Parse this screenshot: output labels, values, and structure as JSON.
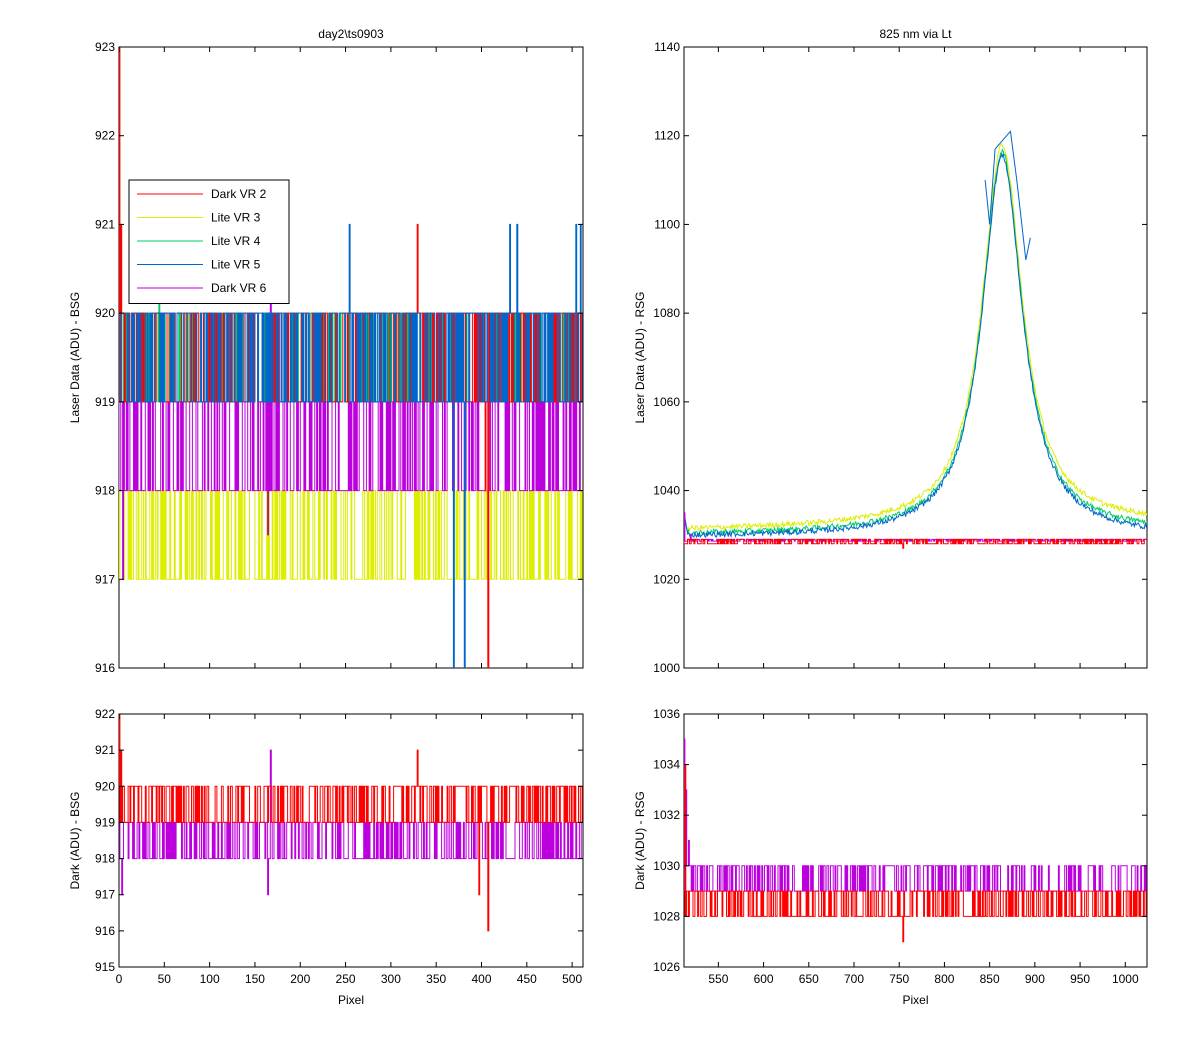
{
  "colors": {
    "dark_vr2": "#ff0000",
    "lite_vr3": "#ddee00",
    "lite_vr4": "#00cc66",
    "lite_vr5": "#0066cc",
    "dark_vr6": "#bb00dd"
  },
  "chart_data": [
    {
      "id": "tl",
      "type": "line",
      "title": "day2\\ts0903",
      "xlabel": "",
      "ylabel": "Laser Data (ADU) - BSG",
      "xlim": [
        0,
        512
      ],
      "ylim": [
        916,
        923
      ],
      "xticks": [
        0,
        50,
        100,
        150,
        200,
        250,
        300,
        350,
        400,
        450,
        500
      ],
      "yticks": [
        916,
        917,
        918,
        919,
        920,
        921,
        922,
        923
      ],
      "show_x_ticklabels": false,
      "grid": false,
      "legend": {
        "placement": "upper-left",
        "entries": [
          {
            "label": "Dark VR 2",
            "color_key": "dark_vr2"
          },
          {
            "label": "Lite VR 3",
            "color_key": "lite_vr3"
          },
          {
            "label": "Lite VR 4",
            "color_key": "lite_vr4"
          },
          {
            "label": "Lite VR 5",
            "color_key": "lite_vr5"
          },
          {
            "label": "Dark VR 6",
            "color_key": "dark_vr6"
          }
        ]
      },
      "series": [
        {
          "name": "Lite VR 3",
          "color_key": "lite_vr3",
          "pattern": "noise",
          "levels": [
            917,
            918
          ],
          "spikes": [
            [
              120,
              917
            ],
            [
              165,
              917
            ]
          ]
        },
        {
          "name": "Lite VR 4",
          "color_key": "lite_vr4",
          "pattern": "noise",
          "levels": [
            919,
            920
          ],
          "spikes": [
            [
              45,
              920.2
            ]
          ]
        },
        {
          "name": "Dark VR 6",
          "color_key": "dark_vr6",
          "pattern": "noise",
          "levels": [
            918,
            919
          ],
          "spikes": [
            [
              5,
              917
            ],
            [
              165,
              917.5
            ],
            [
              168,
              920.2
            ]
          ]
        },
        {
          "name": "Dark VR 2",
          "color_key": "dark_vr2",
          "pattern": "noise",
          "levels": [
            919,
            920
          ],
          "spikes": [
            [
              1,
              923
            ],
            [
              3,
              921
            ],
            [
              330,
              921
            ],
            [
              405,
              918
            ],
            [
              408,
              916
            ]
          ]
        },
        {
          "name": "Lite VR 5",
          "color_key": "lite_vr5",
          "pattern": "noise",
          "levels": [
            919,
            920
          ],
          "spikes": [
            [
              255,
              921
            ],
            [
              370,
              916
            ],
            [
              382,
              916
            ],
            [
              432,
              921
            ],
            [
              440,
              921
            ],
            [
              505,
              921
            ],
            [
              510,
              921
            ]
          ]
        }
      ]
    },
    {
      "id": "bl",
      "type": "line",
      "title": "",
      "xlabel": "Pixel",
      "ylabel": "Dark (ADU) - BSG",
      "xlim": [
        0,
        512
      ],
      "ylim": [
        915,
        922
      ],
      "xticks": [
        0,
        50,
        100,
        150,
        200,
        250,
        300,
        350,
        400,
        450,
        500
      ],
      "yticks": [
        915,
        916,
        917,
        918,
        919,
        920,
        921,
        922
      ],
      "show_x_ticklabels": true,
      "grid": false,
      "series": [
        {
          "name": "Dark VR 6",
          "color_key": "dark_vr6",
          "pattern": "noise",
          "levels": [
            918,
            919
          ],
          "spikes": [
            [
              4,
              917
            ],
            [
              165,
              917
            ],
            [
              168,
              921
            ]
          ]
        },
        {
          "name": "Dark VR 2",
          "color_key": "dark_vr2",
          "pattern": "noise",
          "levels": [
            919,
            920
          ],
          "spikes": [
            [
              1,
              922
            ],
            [
              3,
              921
            ],
            [
              330,
              921
            ],
            [
              398,
              917
            ],
            [
              408,
              916
            ]
          ]
        }
      ]
    },
    {
      "id": "tr",
      "type": "line",
      "title": "825 nm via Lt",
      "xlabel": "",
      "ylabel": "Laser Data (ADU) - RSG",
      "xlim": [
        512,
        1024
      ],
      "ylim": [
        1000,
        1140
      ],
      "xticks": [
        550,
        600,
        650,
        700,
        750,
        800,
        850,
        900,
        950,
        1000
      ],
      "yticks": [
        1000,
        1020,
        1040,
        1060,
        1080,
        1100,
        1120,
        1140
      ],
      "show_x_ticklabels": false,
      "grid": false,
      "series": [
        {
          "name": "Lite VR 3",
          "color_key": "lite_vr3",
          "pattern": "peak",
          "base": 1030,
          "center": 864,
          "amp": 86,
          "gamma": 27,
          "offset": 1,
          "tail": 1.5
        },
        {
          "name": "Lite VR 4",
          "color_key": "lite_vr4",
          "pattern": "peak",
          "base": 1030,
          "center": 864,
          "amp": 86,
          "gamma": 27,
          "offset": 0,
          "tail": 0.5
        },
        {
          "name": "Lite VR 5",
          "color_key": "lite_vr5",
          "pattern": "peak",
          "base": 1029.5,
          "center": 864,
          "amp": 86,
          "gamma": 27,
          "offset": 0,
          "tail": 0
        },
        {
          "name": "Dark VR 6",
          "color_key": "dark_vr6",
          "pattern": "noise",
          "levels": [
            1028.6,
            1029
          ],
          "spikes": [
            [
              513,
              1035
            ],
            [
              520,
              1030
            ]
          ]
        },
        {
          "name": "Dark VR 2",
          "color_key": "dark_vr2",
          "pattern": "noise",
          "levels": [
            1028,
            1029
          ],
          "spikes": [
            [
              755,
              1027
            ]
          ]
        }
      ],
      "peak_points": [
        [
          845,
          1110
        ],
        [
          850,
          1100
        ],
        [
          856,
          1117
        ],
        [
          873,
          1121
        ],
        [
          880,
          1110
        ],
        [
          890,
          1092
        ],
        [
          895,
          1097
        ]
      ]
    },
    {
      "id": "br",
      "type": "line",
      "title": "",
      "xlabel": "Pixel",
      "ylabel": "Dark (ADU) - RSG",
      "xlim": [
        512,
        1024
      ],
      "ylim": [
        1026,
        1036
      ],
      "xticks": [
        550,
        600,
        650,
        700,
        750,
        800,
        850,
        900,
        950,
        1000
      ],
      "yticks": [
        1026,
        1028,
        1030,
        1032,
        1034,
        1036
      ],
      "show_x_ticklabels": true,
      "grid": false,
      "series": [
        {
          "name": "Dark VR 6",
          "color_key": "dark_vr6",
          "pattern": "noise",
          "levels": [
            1029,
            1030
          ],
          "spikes": [
            [
              513,
              1035
            ],
            [
              515,
              1033
            ],
            [
              518,
              1031
            ]
          ]
        },
        {
          "name": "Dark VR 2",
          "color_key": "dark_vr2",
          "pattern": "noise",
          "levels": [
            1028,
            1029
          ],
          "spikes": [
            [
              514,
              1034
            ],
            [
              755,
              1027
            ]
          ]
        }
      ]
    }
  ]
}
